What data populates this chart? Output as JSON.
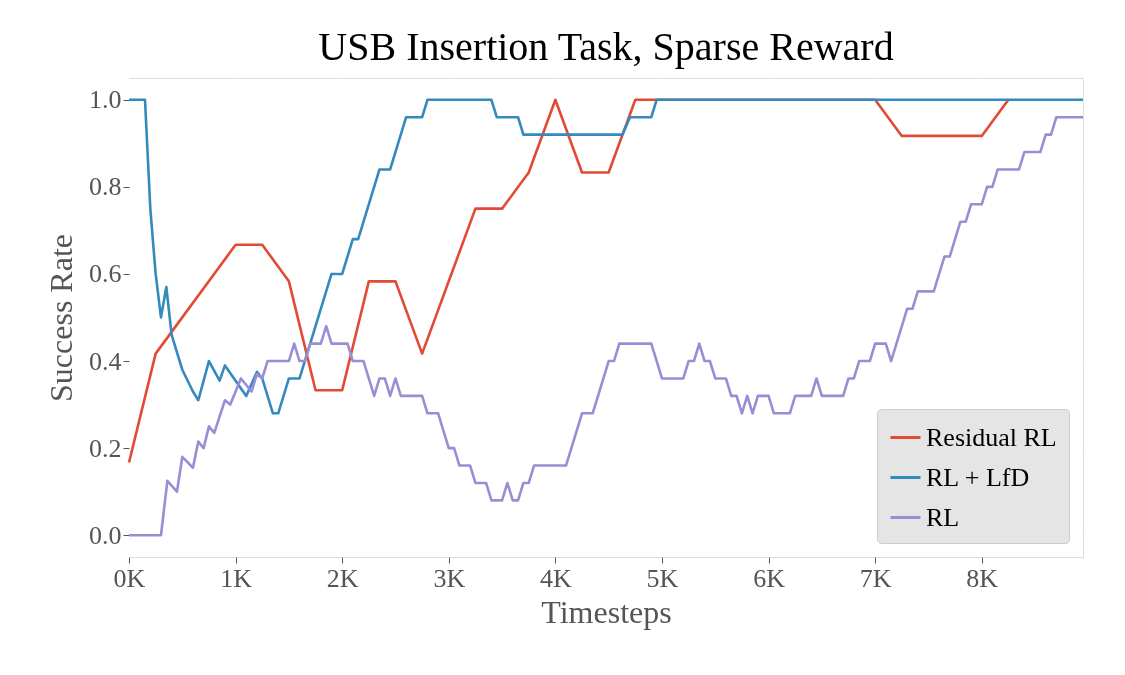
{
  "chart_data": {
    "type": "line",
    "title": "USB Insertion Task, Sparse Reward",
    "xlabel": "Timesteps",
    "ylabel": "Success Rate",
    "xlim": [
      0,
      8950
    ],
    "ylim": [
      -0.05,
      1.05
    ],
    "xticks": [
      {
        "value": 0,
        "label": "0K"
      },
      {
        "value": 1000,
        "label": "1K"
      },
      {
        "value": 2000,
        "label": "2K"
      },
      {
        "value": 3000,
        "label": "3K"
      },
      {
        "value": 4000,
        "label": "4K"
      },
      {
        "value": 5000,
        "label": "5K"
      },
      {
        "value": 6000,
        "label": "6K"
      },
      {
        "value": 7000,
        "label": "7K"
      },
      {
        "value": 8000,
        "label": "8K"
      }
    ],
    "yticks": [
      {
        "value": 0,
        "label": "0.0"
      },
      0.2,
      0.4,
      0.6,
      0.8,
      {
        "value": 1,
        "label": "1.0"
      }
    ],
    "grid": true,
    "legend": "bottom right",
    "line_style": "solid",
    "marker": "none",
    "series": [
      {
        "name": "Residual RL",
        "color": "#e24a33",
        "x": [
          0,
          250,
          1000,
          1250,
          1500,
          1750,
          2000,
          2250,
          2500,
          2750,
          3250,
          3500,
          3750,
          4000,
          4250,
          4500,
          4750,
          7000,
          7250,
          8000,
          8250
        ],
        "values": [
          0.167,
          0.417,
          0.667,
          0.667,
          0.583,
          0.333,
          0.333,
          0.583,
          0.583,
          0.417,
          0.75,
          0.75,
          0.833,
          1.0,
          0.833,
          0.833,
          1.0,
          1.0,
          0.917,
          0.917,
          1.0
        ]
      },
      {
        "name": "RL + LfD",
        "color": "#348abd",
        "x": [
          0,
          150,
          200,
          250,
          300,
          350,
          400,
          500,
          600,
          650,
          750,
          850,
          900,
          1100,
          1200,
          1250,
          1350,
          1400,
          1500,
          1600,
          1900,
          2000,
          2100,
          2150,
          2350,
          2450,
          2600,
          2750,
          2800,
          3400,
          3450,
          3650,
          3700,
          4630,
          4700,
          4900,
          4950,
          8950
        ],
        "values": [
          1.0,
          1.0,
          0.75,
          0.6,
          0.5,
          0.57,
          0.46,
          0.38,
          0.33,
          0.31,
          0.4,
          0.355,
          0.39,
          0.32,
          0.375,
          0.36,
          0.28,
          0.28,
          0.36,
          0.36,
          0.6,
          0.6,
          0.68,
          0.68,
          0.84,
          0.84,
          0.96,
          0.96,
          1.0,
          1.0,
          0.96,
          0.96,
          0.92,
          0.92,
          0.96,
          0.96,
          1.0,
          1.0
        ]
      },
      {
        "name": "RL",
        "color": "#988ed5",
        "x": [
          0,
          300,
          360,
          450,
          500,
          600,
          650,
          700,
          750,
          800,
          900,
          950,
          1050,
          1150,
          1200,
          1250,
          1300,
          1500,
          1550,
          1600,
          1650,
          1700,
          1800,
          1850,
          1900,
          2050,
          2100,
          2200,
          2300,
          2350,
          2400,
          2450,
          2500,
          2550,
          2750,
          2800,
          2900,
          3000,
          3050,
          3100,
          3200,
          3250,
          3350,
          3400,
          3500,
          3550,
          3600,
          3650,
          3700,
          3750,
          3800,
          4100,
          4250,
          4350,
          4500,
          4550,
          4600,
          4900,
          5000,
          5200,
          5250,
          5300,
          5350,
          5400,
          5450,
          5500,
          5600,
          5650,
          5700,
          5750,
          5800,
          5850,
          5900,
          6000,
          6050,
          6200,
          6250,
          6400,
          6450,
          6500,
          6700,
          6750,
          6800,
          6850,
          6950,
          7000,
          7100,
          7150,
          7300,
          7350,
          7400,
          7550,
          7650,
          7700,
          7800,
          7850,
          7900,
          8000,
          8050,
          8100,
          8150,
          8350,
          8400,
          8550,
          8600,
          8650,
          8700,
          8950
        ],
        "values": [
          0,
          0,
          0.125,
          0.1,
          0.18,
          0.155,
          0.215,
          0.2,
          0.25,
          0.235,
          0.31,
          0.3,
          0.36,
          0.33,
          0.37,
          0.36,
          0.4,
          0.4,
          0.44,
          0.4,
          0.4,
          0.44,
          0.44,
          0.48,
          0.44,
          0.44,
          0.4,
          0.4,
          0.32,
          0.36,
          0.36,
          0.32,
          0.36,
          0.32,
          0.32,
          0.28,
          0.28,
          0.2,
          0.2,
          0.16,
          0.16,
          0.12,
          0.12,
          0.08,
          0.08,
          0.12,
          0.08,
          0.08,
          0.12,
          0.12,
          0.16,
          0.16,
          0.28,
          0.28,
          0.4,
          0.4,
          0.44,
          0.44,
          0.36,
          0.36,
          0.4,
          0.4,
          0.44,
          0.4,
          0.4,
          0.36,
          0.36,
          0.32,
          0.32,
          0.28,
          0.32,
          0.28,
          0.32,
          0.32,
          0.28,
          0.28,
          0.32,
          0.32,
          0.36,
          0.32,
          0.32,
          0.36,
          0.36,
          0.4,
          0.4,
          0.44,
          0.44,
          0.4,
          0.52,
          0.52,
          0.56,
          0.56,
          0.64,
          0.64,
          0.72,
          0.72,
          0.76,
          0.76,
          0.8,
          0.8,
          0.84,
          0.84,
          0.88,
          0.88,
          0.92,
          0.92,
          0.96,
          0.96
        ]
      }
    ]
  }
}
